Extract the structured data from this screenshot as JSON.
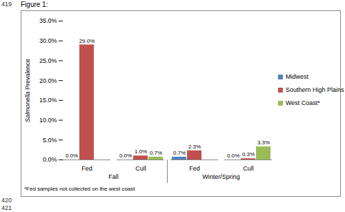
{
  "chart_data": {
    "type": "bar",
    "title": "Figure 1:",
    "caption": "*Fed samples not collected on the west coast",
    "line_numbers": [
      "419",
      "420",
      "421"
    ],
    "y_label": "Salmonella Prevalence",
    "categories": [
      "Fed",
      "Cull",
      "Fed",
      "Cull"
    ],
    "groups": [
      "Fall",
      "Fall",
      "Winter/Spring",
      "Winter/Spring"
    ],
    "series": [
      {
        "name": "Midwest",
        "color": "#4F81BD",
        "values": [
          0.0,
          0.0,
          0.7,
          0.0
        ],
        "value_labels": [
          "0.0%",
          "0.0%",
          "0.7%",
          "0.0%"
        ]
      },
      {
        "name": "Southern High Plains",
        "color": "#C0504D",
        "values": [
          29.0,
          1.0,
          2.3,
          0.3
        ],
        "value_labels": [
          "29.0%",
          "1.0%",
          "2.3%",
          "0.3%"
        ]
      },
      {
        "name": "West Coast*",
        "color": "#9BBB59",
        "values": [
          null,
          0.7,
          null,
          3.3
        ],
        "value_labels": [
          null,
          "0.7%",
          null,
          "3.3%"
        ]
      }
    ],
    "ylim": [
      0,
      35
    ],
    "yticks": [
      {
        "value": 0,
        "label": "0.0%"
      },
      {
        "value": 5,
        "label": "5.0%"
      },
      {
        "value": 10,
        "label": "10.0%"
      },
      {
        "value": 15,
        "label": "15.0%"
      },
      {
        "value": 20,
        "label": "20.0%"
      },
      {
        "value": 25,
        "label": "25.0%"
      },
      {
        "value": 30,
        "label": "30.0%"
      },
      {
        "value": 35,
        "label": "35.0%"
      }
    ],
    "grid": false,
    "legend": "right",
    "data_labels": true
  }
}
